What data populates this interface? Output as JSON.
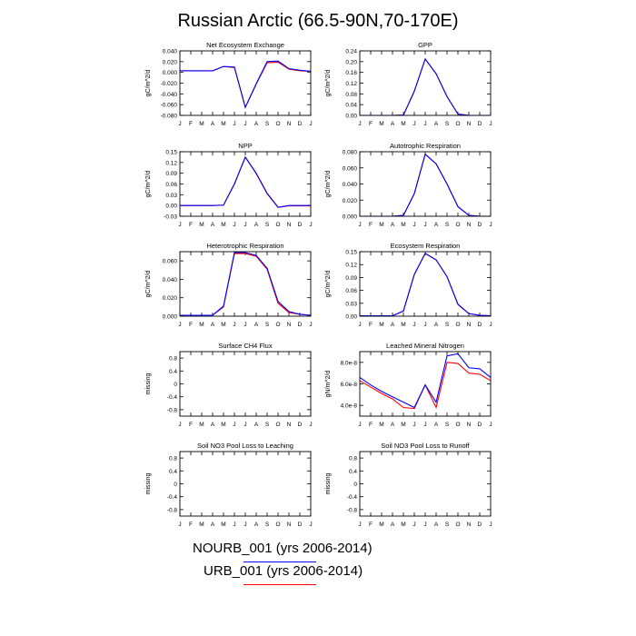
{
  "title": "Russian Arctic (66.5-90N,70-170E)",
  "colors": {
    "NOURB_001": "#0000ff",
    "URB_001": "#ff0000"
  },
  "legend": [
    {
      "label": "NOURB_001 (yrs 2006-2014)",
      "color": "#0000ff"
    },
    {
      "label": "URB_001 (yrs 2006-2014)",
      "color": "#ff0000"
    }
  ],
  "chart_data": [
    {
      "type": "line",
      "title": "Net Ecosystem Exchange",
      "ylabel": "gC/m^2/d",
      "categories": [
        "J",
        "F",
        "M",
        "A",
        "M",
        "J",
        "J",
        "A",
        "S",
        "O",
        "N",
        "D",
        "J"
      ],
      "ylim": [
        -0.08,
        0.04
      ],
      "yticks": [
        "0.040",
        "0.020",
        "0.000",
        "-0.020",
        "-0.040",
        "-0.060",
        "-0.080"
      ],
      "ytick_values": [
        0.04,
        0.02,
        0.0,
        -0.02,
        -0.04,
        -0.06,
        -0.08
      ],
      "series": [
        {
          "name": "NOURB_001",
          "values": [
            0.003,
            0.003,
            0.003,
            0.003,
            0.011,
            0.01,
            -0.065,
            -0.021,
            0.02,
            0.021,
            0.007,
            0.004,
            0.002
          ]
        },
        {
          "name": "URB_001",
          "values": [
            0.003,
            0.003,
            0.003,
            0.003,
            0.011,
            0.009,
            -0.065,
            -0.022,
            0.018,
            0.019,
            0.006,
            0.003,
            0.002
          ]
        }
      ]
    },
    {
      "type": "line",
      "title": "GPP",
      "ylabel": "gC/m^2/d",
      "categories": [
        "J",
        "F",
        "M",
        "A",
        "M",
        "J",
        "J",
        "A",
        "S",
        "O",
        "N",
        "D",
        "J"
      ],
      "ylim": [
        0,
        0.24
      ],
      "yticks": [
        "0.24",
        "0.20",
        "0.16",
        "0.12",
        "0.08",
        "0.04",
        "0.00"
      ],
      "ytick_values": [
        0.24,
        0.2,
        0.16,
        0.12,
        0.08,
        0.04,
        0.0
      ],
      "series": [
        {
          "name": "NOURB_001",
          "values": [
            0,
            0,
            0,
            0,
            0.001,
            0.09,
            0.21,
            0.155,
            0.07,
            0.005,
            0,
            0,
            0
          ]
        },
        {
          "name": "URB_001",
          "values": [
            0,
            0,
            0,
            0,
            0.001,
            0.09,
            0.21,
            0.155,
            0.07,
            0.005,
            0,
            0,
            0
          ]
        }
      ]
    },
    {
      "type": "line",
      "title": "NPP",
      "ylabel": "gC/m^2/d",
      "categories": [
        "J",
        "F",
        "M",
        "A",
        "M",
        "J",
        "J",
        "A",
        "S",
        "O",
        "N",
        "D",
        "J"
      ],
      "ylim": [
        -0.03,
        0.15
      ],
      "yticks": [
        "0.15",
        "0.12",
        "0.09",
        "0.06",
        "0.03",
        "0.00",
        "-0.03"
      ],
      "ytick_values": [
        0.15,
        0.12,
        0.09,
        0.06,
        0.03,
        0.0,
        -0.03
      ],
      "series": [
        {
          "name": "NOURB_001",
          "values": [
            0,
            0,
            0,
            0,
            0.001,
            0.06,
            0.135,
            0.09,
            0.034,
            -0.005,
            0,
            0,
            0
          ]
        },
        {
          "name": "URB_001",
          "values": [
            0,
            0,
            0,
            0,
            0.001,
            0.06,
            0.135,
            0.089,
            0.033,
            -0.005,
            -0.001,
            -0.001,
            -0.001
          ]
        }
      ]
    },
    {
      "type": "line",
      "title": "Autotrophic Respiration",
      "ylabel": "gC/m^2/d",
      "categories": [
        "J",
        "F",
        "M",
        "A",
        "M",
        "J",
        "J",
        "A",
        "S",
        "O",
        "N",
        "D",
        "J"
      ],
      "ylim": [
        0,
        0.08
      ],
      "yticks": [
        "0.080",
        "0.060",
        "0.040",
        "0.020",
        "0.000"
      ],
      "ytick_values": [
        0.08,
        0.06,
        0.04,
        0.02,
        0.0
      ],
      "series": [
        {
          "name": "NOURB_001",
          "values": [
            0,
            0,
            0,
            0,
            0.001,
            0.028,
            0.077,
            0.065,
            0.04,
            0.012,
            0.001,
            0,
            0
          ]
        },
        {
          "name": "URB_001",
          "values": [
            0,
            0,
            0,
            0,
            0.001,
            0.028,
            0.077,
            0.065,
            0.04,
            0.012,
            0.001,
            0,
            0
          ]
        }
      ]
    },
    {
      "type": "line",
      "title": "Heterotrophic Respiration",
      "ylabel": "gC/m^2/d",
      "categories": [
        "J",
        "F",
        "M",
        "A",
        "M",
        "J",
        "J",
        "A",
        "S",
        "O",
        "N",
        "D",
        "J"
      ],
      "ylim": [
        0,
        0.07
      ],
      "yticks": [
        "0.060",
        "0.040",
        "0.020",
        "0.000"
      ],
      "ytick_values": [
        0.06,
        0.04,
        0.02,
        0.0
      ],
      "series": [
        {
          "name": "NOURB_001",
          "values": [
            0.001,
            0.001,
            0.001,
            0.001,
            0.011,
            0.069,
            0.069,
            0.066,
            0.052,
            0.016,
            0.005,
            0.002,
            0.001
          ]
        },
        {
          "name": "URB_001",
          "values": [
            0.001,
            0.001,
            0.001,
            0.001,
            0.01,
            0.068,
            0.068,
            0.065,
            0.051,
            0.014,
            0.004,
            0.002,
            0.001
          ]
        }
      ]
    },
    {
      "type": "line",
      "title": "Ecosystem Respiration",
      "ylabel": "gC/m^2/d",
      "categories": [
        "J",
        "F",
        "M",
        "A",
        "M",
        "J",
        "J",
        "A",
        "S",
        "O",
        "N",
        "D",
        "J"
      ],
      "ylim": [
        0,
        0.15
      ],
      "yticks": [
        "0.15",
        "0.12",
        "0.09",
        "0.06",
        "0.03",
        "0.00"
      ],
      "ytick_values": [
        0.15,
        0.12,
        0.09,
        0.06,
        0.03,
        0.0
      ],
      "series": [
        {
          "name": "NOURB_001",
          "values": [
            0.001,
            0.001,
            0.001,
            0.001,
            0.012,
            0.097,
            0.146,
            0.131,
            0.092,
            0.028,
            0.006,
            0.002,
            0.001
          ]
        },
        {
          "name": "URB_001",
          "values": [
            0.001,
            0.001,
            0.001,
            0.001,
            0.012,
            0.097,
            0.146,
            0.131,
            0.092,
            0.027,
            0.006,
            0.002,
            0.001
          ]
        }
      ]
    },
    {
      "type": "line",
      "title": "Surface CH4 Flux",
      "ylabel": "missing",
      "categories": [
        "J",
        "F",
        "M",
        "A",
        "M",
        "J",
        "J",
        "A",
        "S",
        "O",
        "N",
        "D",
        "J"
      ],
      "ylim": [
        -1,
        1
      ],
      "yticks": [
        "0.8",
        "0.4",
        "0",
        "-0.4",
        "-0.8"
      ],
      "ytick_values": [
        0.8,
        0.4,
        0,
        -0.4,
        -0.8
      ],
      "series": []
    },
    {
      "type": "line",
      "title": "Leached Mineral Nitrogen",
      "ylabel": "gN/m^2/d",
      "categories": [
        "J",
        "F",
        "M",
        "A",
        "M",
        "J",
        "J",
        "A",
        "S",
        "O",
        "N",
        "D",
        "J"
      ],
      "ylim": [
        3e-08,
        9e-08
      ],
      "yticks": [
        "8.0e-8",
        "6.0e-8",
        "4.0e-8"
      ],
      "ytick_values": [
        8e-08,
        6e-08,
        4e-08
      ],
      "series": [
        {
          "name": "NOURB_001",
          "values": [
            6.6e-08,
            5.9e-08,
            5.3e-08,
            4.8e-08,
            4.3e-08,
            3.8e-08,
            5.9e-08,
            4.3e-08,
            8.6e-08,
            8.8e-08,
            7.5e-08,
            7.4e-08,
            6.6e-08
          ]
        },
        {
          "name": "URB_001",
          "values": [
            6.3e-08,
            5.7e-08,
            5.1e-08,
            4.6e-08,
            3.8e-08,
            3.7e-08,
            5.9e-08,
            3.8e-08,
            8e-08,
            7.9e-08,
            7e-08,
            6.9e-08,
            6.3e-08
          ]
        }
      ]
    },
    {
      "type": "line",
      "title": "Soil NO3 Pool Loss to Leaching",
      "ylabel": "missing",
      "categories": [
        "J",
        "F",
        "M",
        "A",
        "M",
        "J",
        "J",
        "A",
        "S",
        "O",
        "N",
        "D",
        "J"
      ],
      "ylim": [
        -1,
        1
      ],
      "yticks": [
        "0.8",
        "0.4",
        "0",
        "-0.4",
        "-0.8"
      ],
      "ytick_values": [
        0.8,
        0.4,
        0,
        -0.4,
        -0.8
      ],
      "series": []
    },
    {
      "type": "line",
      "title": "Soil NO3 Pool Loss to Runoff",
      "ylabel": "missing",
      "categories": [
        "J",
        "F",
        "M",
        "A",
        "M",
        "J",
        "J",
        "A",
        "S",
        "O",
        "N",
        "D",
        "J"
      ],
      "ylim": [
        -1,
        1
      ],
      "yticks": [
        "0.8",
        "0.4",
        "0",
        "-0.4",
        "-0.8"
      ],
      "ytick_values": [
        0.8,
        0.4,
        0,
        -0.4,
        -0.8
      ],
      "series": []
    }
  ]
}
